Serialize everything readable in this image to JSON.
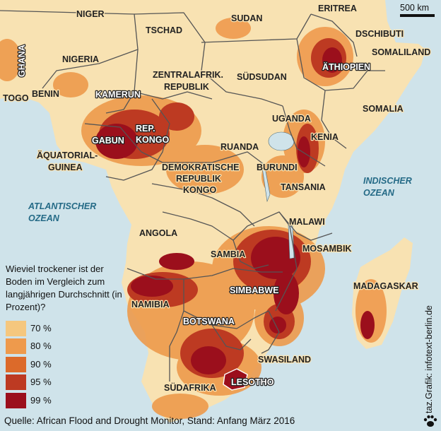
{
  "map": {
    "scale_label": "500 km",
    "countries": [
      "NIGER",
      "SUDAN",
      "ERITREA",
      "TSCHAD",
      "DSCHIBUTI",
      "SOMALILAND",
      "NIGERIA",
      "ÄTHIOPIEN",
      "ZENTRALAFRIK.",
      "REPUBLIK",
      "SÜDSUDAN",
      "GHANA",
      "BENIN",
      "TOGO",
      "KAMERUN",
      "SOMALIA",
      "UGANDA",
      "REP.",
      "KONGO",
      "KENIA",
      "GABUN",
      "RUANDA",
      "ÄQUATORIAL-",
      "GUINEA",
      "DEMOKRATISCHE",
      "REPUBLIK",
      "KONGO",
      "BURUNDI",
      "TANSANIA",
      "MALAWI",
      "ANGOLA",
      "MOSAMBIK",
      "SAMBIA",
      "SIMBABWE",
      "MADAGASKAR",
      "NAMIBIA",
      "BOTSWANA",
      "SWASILAND",
      "SÜDAFRIKA",
      "LESOTHO"
    ],
    "oceans": {
      "atlantic": [
        "ATLANTISCHER",
        "OZEAN"
      ],
      "indian": [
        "INDISCHER",
        "OZEAN"
      ]
    }
  },
  "legend": {
    "question": "Wieviel trockener ist der Boden im Vergleich zum langjährigen Durchschnitt (in Prozent)?",
    "items": [
      {
        "label": "70 %",
        "color": "#f5c77e"
      },
      {
        "label": "80 %",
        "color": "#ee9a4c"
      },
      {
        "label": "90 %",
        "color": "#dc6a2a"
      },
      {
        "label": "95 %",
        "color": "#bd3a22"
      },
      {
        "label": "99 %",
        "color": "#9b0f1c"
      }
    ]
  },
  "colors": {
    "land": "#f8e2b2",
    "ocean": "#cfe3ea"
  },
  "source": "Quelle: African Flood and Drought Monitor, Stand: Anfang März 2016",
  "credit": "taz.Grafik: infotext-berlin.de"
}
